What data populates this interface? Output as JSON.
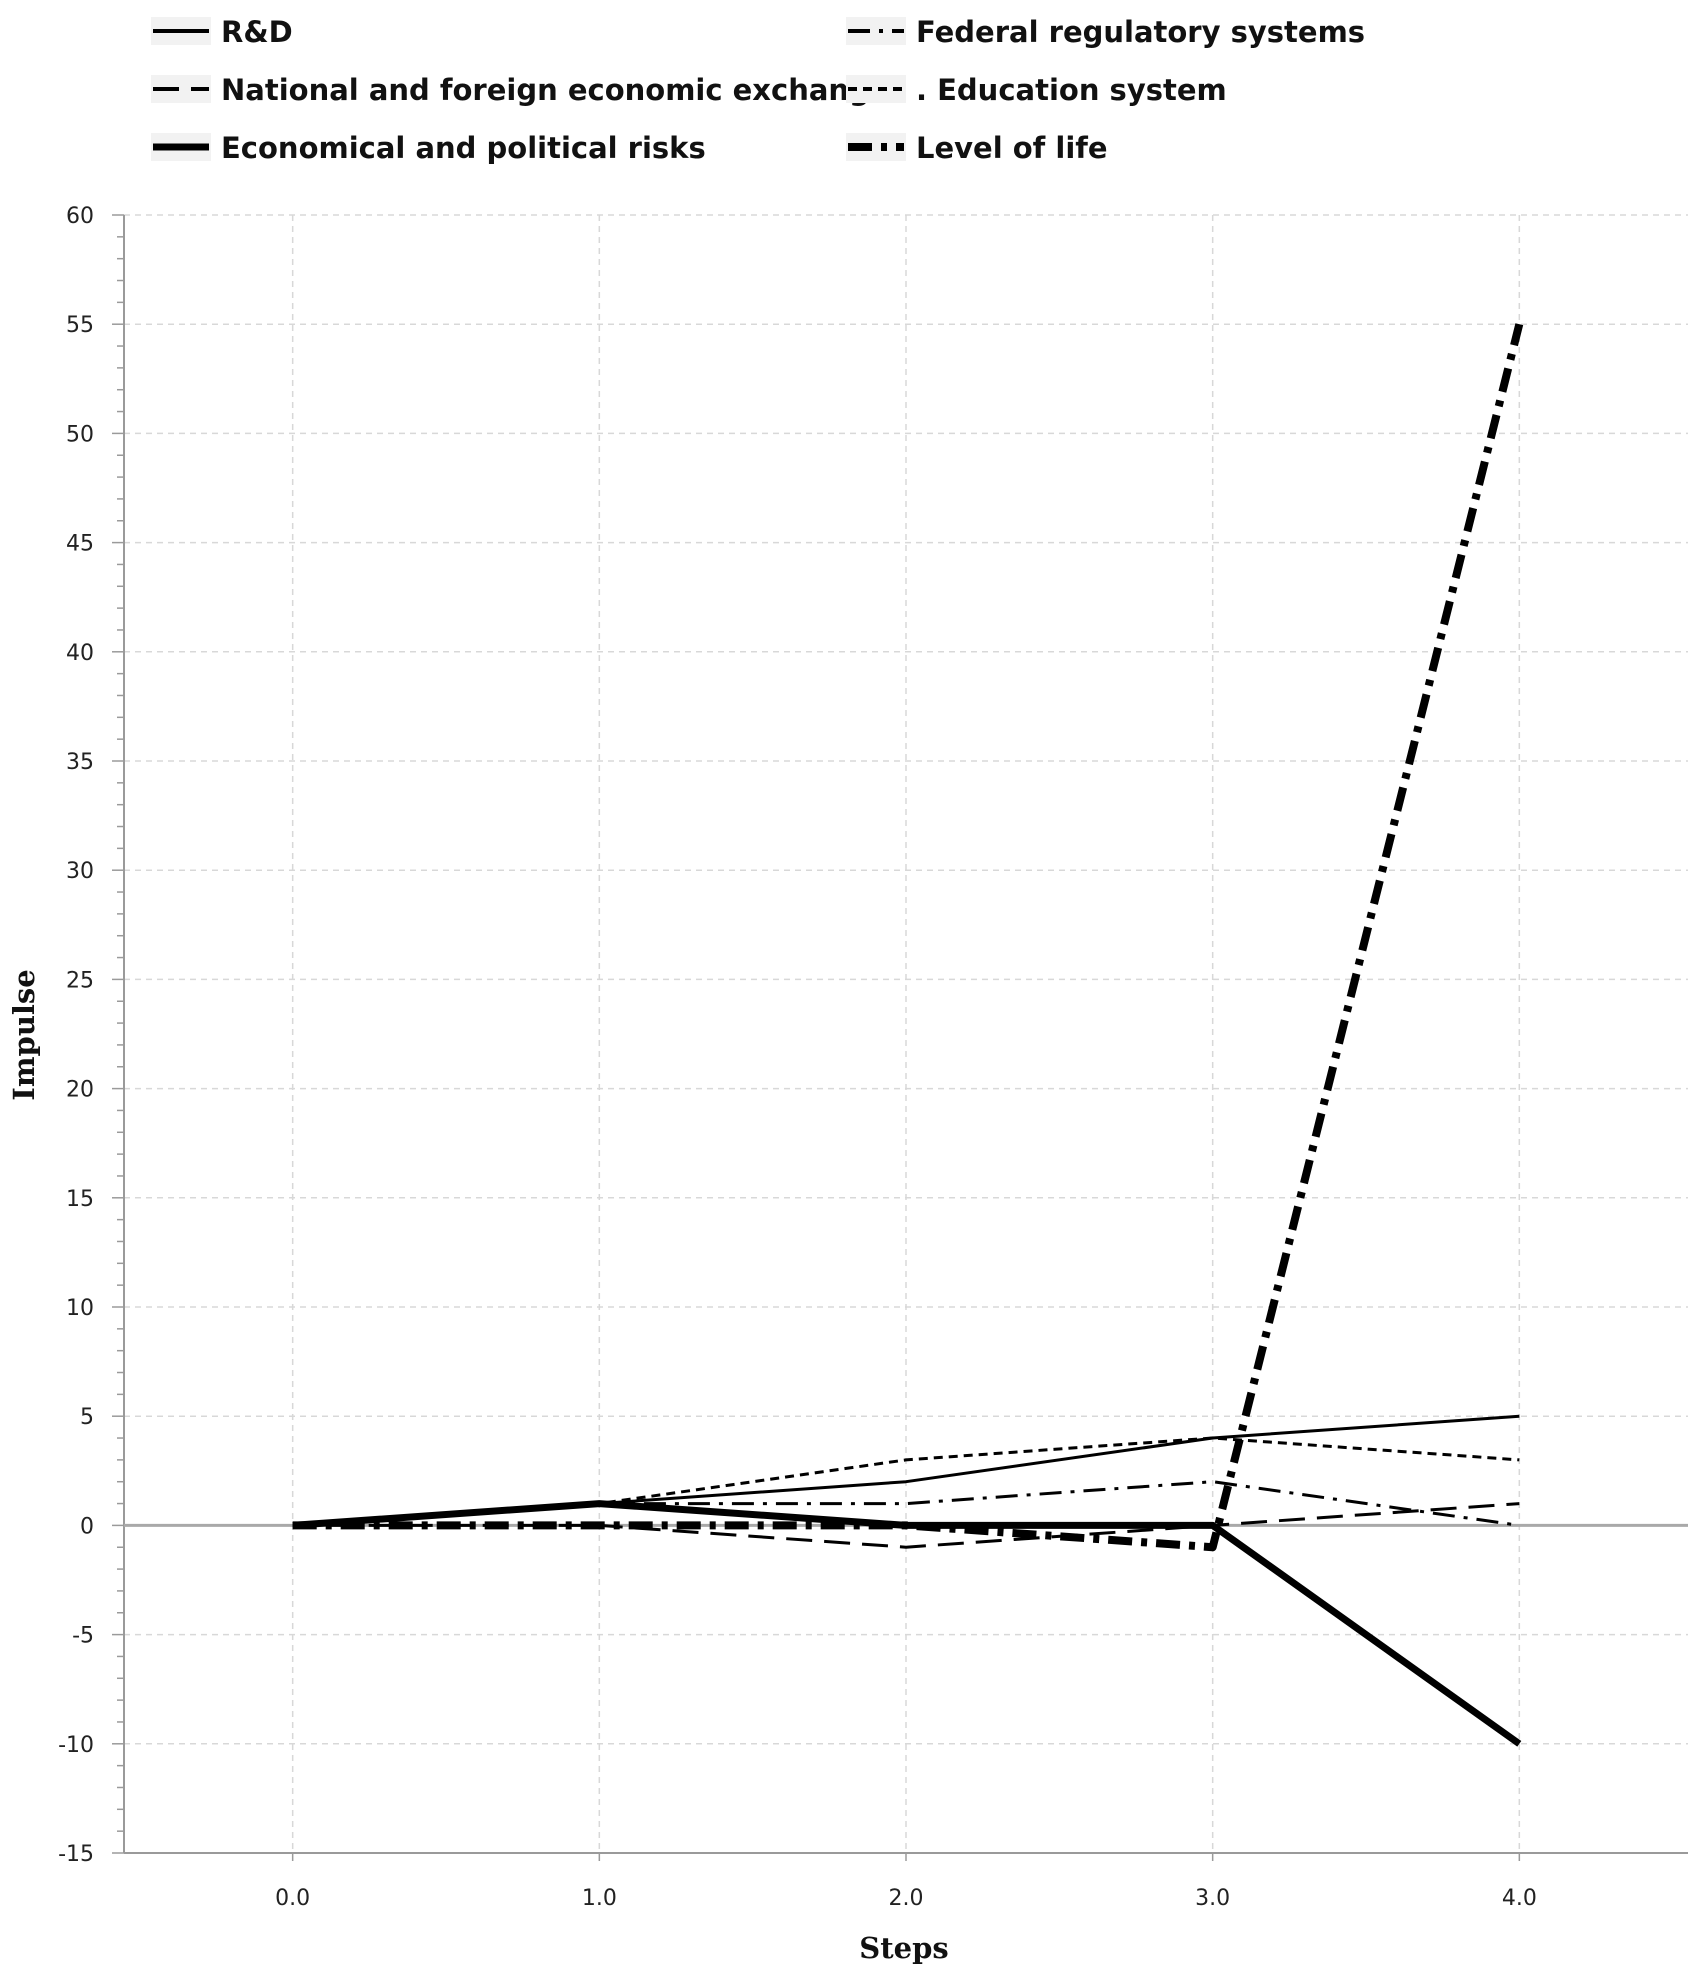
{
  "chart_data": {
    "type": "line",
    "xlabel": "Steps",
    "ylabel": "Impulse",
    "x": [
      0,
      1,
      2,
      3,
      4
    ],
    "x_tick_labels": [
      "0.0",
      "1.0",
      "2.0",
      "3.0",
      "4.0"
    ],
    "xlim": [
      -0.55,
      4.55
    ],
    "ylim": [
      -15,
      60
    ],
    "y_ticks": [
      60,
      55,
      50,
      45,
      40,
      35,
      30,
      25,
      20,
      15,
      10,
      5,
      0,
      -5,
      -10,
      -15
    ],
    "grid": true,
    "legend_position": "top",
    "series": [
      {
        "name": "R&D",
        "style": "solid",
        "values": [
          0,
          1,
          2,
          4,
          5
        ]
      },
      {
        "name": "Federal regulatory systems",
        "style": "dashdot",
        "values": [
          0,
          1,
          1,
          2,
          0
        ]
      },
      {
        "name": "National and foreign economic exchange",
        "style": "longdash",
        "values": [
          0,
          0,
          -1,
          0,
          1
        ]
      },
      {
        "name": ". Education system",
        "style": "dotted",
        "values": [
          0,
          1,
          3,
          4,
          3
        ]
      },
      {
        "name": "Economical and political risks",
        "style": "solid-thick",
        "values": [
          0,
          1,
          0,
          0,
          -10
        ]
      },
      {
        "name": "Level of life",
        "style": "dashdot-thick",
        "values": [
          0,
          0,
          0,
          -1,
          55
        ]
      }
    ]
  },
  "colors": {
    "line": "#000000",
    "grid": "#d8d8d8",
    "axis": "#9a9a9a",
    "zero_line": "#a9a9a9"
  }
}
